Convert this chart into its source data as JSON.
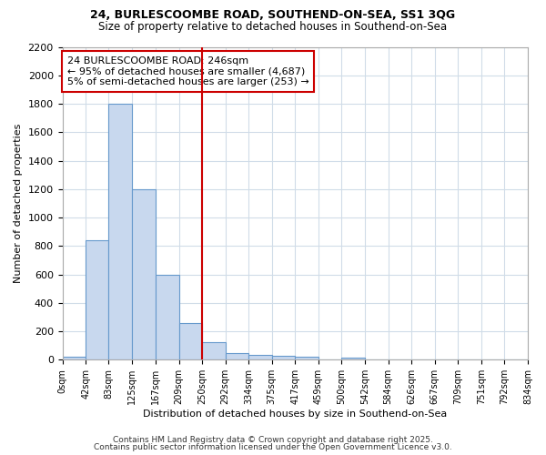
{
  "title1": "24, BURLESCOOMBE ROAD, SOUTHEND-ON-SEA, SS1 3QG",
  "title2": "Size of property relative to detached houses in Southend-on-Sea",
  "xlabel": "Distribution of detached houses by size in Southend-on-Sea",
  "ylabel": "Number of detached properties",
  "bar_color": "#c8d8ee",
  "bar_edge_color": "#6699cc",
  "background_color": "#ffffff",
  "fig_background_color": "#ffffff",
  "annotation_box_color": "#cc0000",
  "annotation_line1": "24 BURLESCOOMBE ROAD: 246sqm",
  "annotation_line2": "← 95% of detached houses are smaller (4,687)",
  "annotation_line3": "5% of semi-detached houses are larger (253) →",
  "property_line_color": "#cc0000",
  "property_line_x": 250,
  "ylim": [
    0,
    2200
  ],
  "bin_edges": [
    0,
    42,
    83,
    125,
    167,
    209,
    250,
    292,
    334,
    375,
    417,
    459,
    500,
    542,
    584,
    626,
    667,
    709,
    751,
    792,
    834
  ],
  "bar_heights": [
    20,
    840,
    1800,
    1200,
    600,
    255,
    125,
    45,
    35,
    25,
    20,
    0,
    15,
    0,
    0,
    0,
    0,
    0,
    0,
    0
  ],
  "footer1": "Contains HM Land Registry data © Crown copyright and database right 2025.",
  "footer2": "Contains public sector information licensed under the Open Government Licence v3.0."
}
